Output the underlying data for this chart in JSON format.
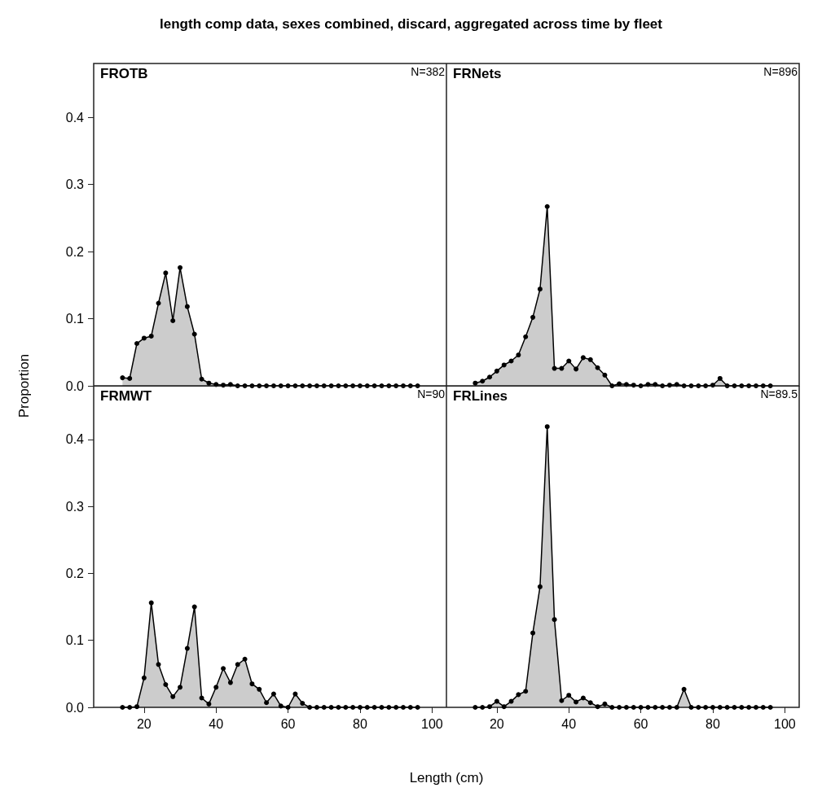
{
  "chart_data": [
    {
      "type": "area",
      "title": "length comp data, sexes combined, discard, aggregated across time by fleet",
      "xlabel": "Length (cm)",
      "ylabel": "Proportion",
      "annotations": [
        "FROTB",
        "N=382"
      ],
      "marker": "circle",
      "tick_labels": "y",
      "grid": false,
      "x": [
        14,
        16,
        18,
        20,
        22,
        24,
        26,
        28,
        30,
        32,
        34,
        36,
        38,
        40,
        42,
        44,
        46,
        48,
        50,
        52,
        54,
        56,
        58,
        60,
        62,
        64,
        66,
        68,
        70,
        72,
        74,
        76,
        78,
        80,
        82,
        84,
        86,
        88,
        90,
        92,
        94,
        96
      ],
      "series": [
        {
          "color": "#000000",
          "values": [
            0.012,
            0.011,
            0.063,
            0.071,
            0.074,
            0.123,
            0.168,
            0.097,
            0.176,
            0.118,
            0.077,
            0.01,
            0.004,
            0.002,
            0.001,
            0.002,
            0,
            0,
            0,
            0,
            0,
            0,
            0,
            0,
            0,
            0,
            0,
            0,
            0,
            0,
            0,
            0,
            0,
            0,
            0,
            0,
            0,
            0,
            0,
            0,
            0,
            0
          ]
        }
      ],
      "xlim": [
        6,
        104
      ],
      "xticks": [
        20,
        40,
        60,
        80,
        100
      ],
      "ylim": [
        0,
        0.48
      ],
      "yticks": [
        {
          "value": 0,
          "label": "0.0"
        },
        0.1,
        0.2,
        0.3,
        0.4
      ]
    },
    {
      "type": "area",
      "annotations": [
        "FRNets",
        "N=896"
      ],
      "marker": "circle",
      "tick_labels": false,
      "grid": false,
      "x": [
        14,
        16,
        18,
        20,
        22,
        24,
        26,
        28,
        30,
        32,
        34,
        36,
        38,
        40,
        42,
        44,
        46,
        48,
        50,
        52,
        54,
        56,
        58,
        60,
        62,
        64,
        66,
        68,
        70,
        72,
        74,
        76,
        78,
        80,
        82,
        84,
        86,
        88,
        90,
        92,
        94,
        96
      ],
      "series": [
        {
          "color": "#000000",
          "values": [
            0.004,
            0.007,
            0.013,
            0.022,
            0.031,
            0.037,
            0.046,
            0.073,
            0.102,
            0.144,
            0.267,
            0.026,
            0.026,
            0.037,
            0.025,
            0.042,
            0.039,
            0.027,
            0.016,
            0,
            0.003,
            0.002,
            0.001,
            0,
            0.002,
            0.002,
            0,
            0.001,
            0.002,
            0,
            0,
            0,
            0,
            0.001,
            0.011,
            0,
            0,
            0,
            0,
            0,
            0,
            0
          ]
        }
      ],
      "xlim": [
        6,
        104
      ],
      "xticks": [
        20,
        40,
        60,
        80,
        100
      ],
      "ylim": [
        0,
        0.48
      ],
      "yticks": [
        0,
        0.1,
        0.2,
        0.3,
        0.4
      ]
    },
    {
      "type": "area",
      "annotations": [
        "FRMWT",
        "N=90"
      ],
      "marker": "circle",
      "grid": false,
      "x": [
        14,
        16,
        18,
        20,
        22,
        24,
        26,
        28,
        30,
        32,
        34,
        36,
        38,
        40,
        42,
        44,
        46,
        48,
        50,
        52,
        54,
        56,
        58,
        60,
        62,
        64,
        66,
        68,
        70,
        72,
        74,
        76,
        78,
        80,
        82,
        84,
        86,
        88,
        90,
        92,
        94,
        96
      ],
      "series": [
        {
          "color": "#000000",
          "values": [
            0,
            0,
            0.001,
            0.044,
            0.156,
            0.064,
            0.034,
            0.016,
            0.03,
            0.088,
            0.15,
            0.014,
            0.005,
            0.03,
            0.058,
            0.037,
            0.064,
            0.072,
            0.035,
            0.027,
            0.007,
            0.02,
            0.002,
            0,
            0.02,
            0.006,
            0,
            0,
            0,
            0,
            0,
            0,
            0,
            0,
            0,
            0,
            0,
            0,
            0,
            0,
            0,
            0
          ]
        }
      ],
      "xlim": [
        6,
        104
      ],
      "xticks": [
        20,
        40,
        60,
        80,
        100
      ],
      "ylim": [
        0,
        0.48
      ],
      "yticks": [
        {
          "value": 0,
          "label": "0.0"
        },
        0.1,
        0.2,
        0.3,
        0.4
      ]
    },
    {
      "type": "area",
      "annotations": [
        "FRLines",
        "N=89.5"
      ],
      "marker": "circle",
      "tick_labels": "x",
      "grid": false,
      "x": [
        14,
        16,
        18,
        20,
        22,
        24,
        26,
        28,
        30,
        32,
        34,
        36,
        38,
        40,
        42,
        44,
        46,
        48,
        50,
        52,
        54,
        56,
        58,
        60,
        62,
        64,
        66,
        68,
        70,
        72,
        74,
        76,
        78,
        80,
        82,
        84,
        86,
        88,
        90,
        92,
        94,
        96
      ],
      "series": [
        {
          "color": "#000000",
          "values": [
            0,
            0,
            0.001,
            0.009,
            0.001,
            0.009,
            0.019,
            0.024,
            0.111,
            0.18,
            0.419,
            0.131,
            0.01,
            0.018,
            0.008,
            0.014,
            0.007,
            0.001,
            0.005,
            0,
            0,
            0,
            0,
            0,
            0,
            0,
            0,
            0,
            0,
            0.027,
            0,
            0,
            0,
            0,
            0,
            0,
            0,
            0,
            0,
            0,
            0,
            0
          ]
        }
      ],
      "xlim": [
        6,
        104
      ],
      "xticks": [
        20,
        40,
        60,
        80,
        100
      ],
      "ylim": [
        0,
        0.48
      ],
      "yticks": [
        0,
        0.1,
        0.2,
        0.3,
        0.4
      ]
    }
  ]
}
